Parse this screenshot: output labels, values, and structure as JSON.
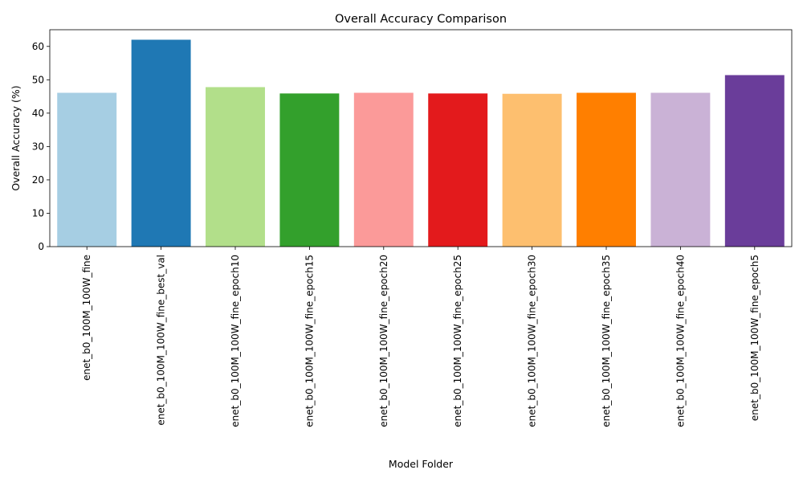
{
  "chart_data": {
    "type": "bar",
    "title": "Overall Accuracy Comparison",
    "xlabel": "Model Folder",
    "ylabel": "Overall Accuracy (%)",
    "ylim": [
      0,
      65
    ],
    "yticks": [
      0,
      10,
      20,
      30,
      40,
      50,
      60
    ],
    "grid": false,
    "legend": "none",
    "categories": [
      "enet_b0_100M_100W_fine",
      "enet_b0_100M_100W_fine_best_val",
      "enet_b0_100M_100W_fine_epoch10",
      "enet_b0_100M_100W_fine_epoch15",
      "enet_b0_100M_100W_fine_epoch20",
      "enet_b0_100M_100W_fine_epoch25",
      "enet_b0_100M_100W_fine_epoch30",
      "enet_b0_100M_100W_fine_epoch35",
      "enet_b0_100M_100W_fine_epoch40",
      "enet_b0_100M_100W_fine_epoch5"
    ],
    "values": [
      46.1,
      62.0,
      47.8,
      45.9,
      46.1,
      45.9,
      45.8,
      46.1,
      46.1,
      51.4
    ],
    "colors": [
      "#a6cee3",
      "#1f78b4",
      "#b2df8a",
      "#33a02c",
      "#fb9a99",
      "#e31a1c",
      "#fdbf6f",
      "#ff7f00",
      "#cab2d6",
      "#6a3d9a"
    ]
  }
}
